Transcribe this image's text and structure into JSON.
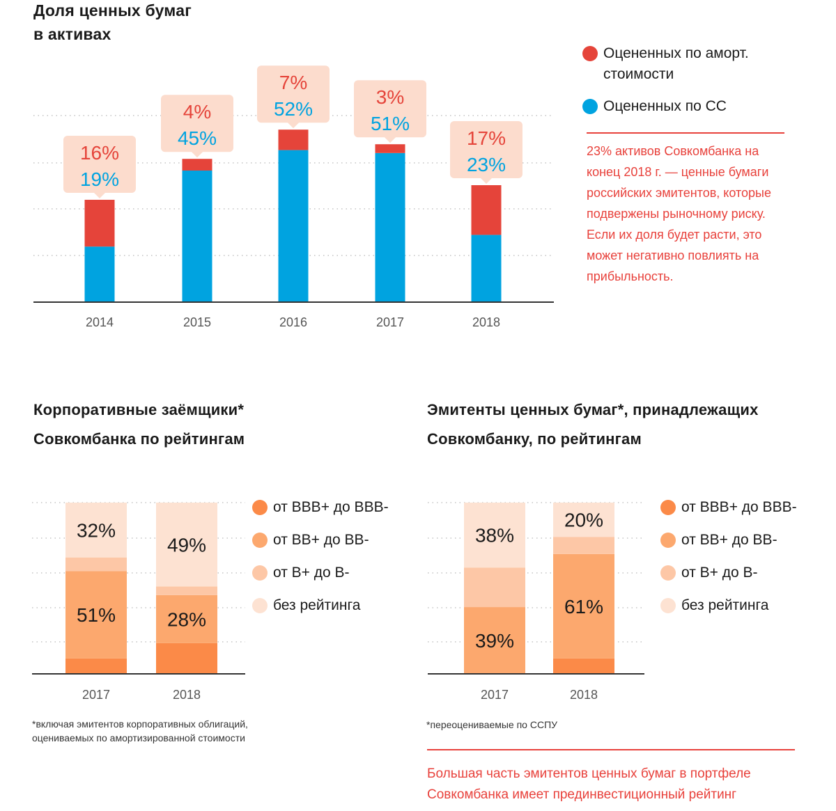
{
  "colors": {
    "amort": "#e5443a",
    "fair": "#00a3e0",
    "callout_bg": "#fcdccd",
    "bbb": "#fb8a48",
    "bb": "#fca86e",
    "b": "#fdc7a6",
    "none": "#fde2d2",
    "note_red": "#e8413b"
  },
  "chart1": {
    "title_line1": "Доля ценных бумаг",
    "title_line2": "в активах",
    "legend": [
      {
        "label": "Оцененных по аморт.\nстоимости",
        "color": "#e5443a"
      },
      {
        "label": "Оцененных по СС",
        "color": "#00a3e0"
      }
    ],
    "note": "23% активов Совкомбанка на конец 2018 г. — ценные бумаги российских эмитентов, которые подвержены рыночному риску. Если их доля будет расти, это может негативно повлиять на прибыльность."
  },
  "chart2": {
    "title_line1": "Корпоративные заёмщики*",
    "title_line2": "Совкомбанка по рейтингам",
    "legend": [
      {
        "label": "от BBB+ до BBB-",
        "color": "#fb8a48"
      },
      {
        "label": "от BB+ до BB-",
        "color": "#fca86e"
      },
      {
        "label": "от B+ до B-",
        "color": "#fdc7a6"
      },
      {
        "label": "без рейтинга",
        "color": "#fde2d2"
      }
    ],
    "footnote_line1": "*включая эмитентов корпоративных облигаций,",
    "footnote_line2": "оцениваемых по амортизированной стоимости"
  },
  "chart3": {
    "title_line1": "Эмитенты ценных бумаг*, принадлежащих",
    "title_line2": "Совкомбанку, по рейтингам",
    "legend": [
      {
        "label": "от BBB+ до BBB-",
        "color": "#fb8a48"
      },
      {
        "label": "от BB+ до BB-",
        "color": "#fca86e"
      },
      {
        "label": "от B+ до B-",
        "color": "#fdc7a6"
      },
      {
        "label": "без рейтинга",
        "color": "#fde2d2"
      }
    ],
    "footnote": "*переоцениваемые по ССПУ",
    "note": "Большая часть эмитентов ценных бумаг в портфеле Совкомбанка имеет прединвестиционный рейтинг"
  },
  "chart_data": [
    {
      "type": "bar",
      "stacked": true,
      "title": "Доля ценных бумаг в активах",
      "categories": [
        "2014",
        "2015",
        "2016",
        "2017",
        "2018"
      ],
      "series": [
        {
          "name": "Оцененных по СС",
          "values": [
            19,
            45,
            52,
            51,
            23
          ],
          "labels": [
            "19%",
            "45%",
            "52%",
            "51%",
            "23%"
          ]
        },
        {
          "name": "Оцененных по аморт. стоимости",
          "values": [
            16,
            4,
            7,
            3,
            17
          ],
          "labels": [
            "16%",
            "4%",
            "7%",
            "3%",
            "17%"
          ]
        }
      ],
      "grid": true,
      "legend_position": "right"
    },
    {
      "type": "bar",
      "stacked": true,
      "title": "Корпоративные заёмщики* Совкомбанка по рейтингам",
      "categories": [
        "2017",
        "2018"
      ],
      "series": [
        {
          "name": "от BBB+ до BBB-",
          "values": [
            9,
            18
          ],
          "labels": [
            "",
            ""
          ]
        },
        {
          "name": "от BB+ до BB-",
          "values": [
            51,
            28
          ],
          "labels": [
            "51%",
            "28%"
          ]
        },
        {
          "name": "от B+ до B-",
          "values": [
            8,
            5
          ],
          "labels": [
            "",
            ""
          ]
        },
        {
          "name": "без рейтинга",
          "values": [
            32,
            49
          ],
          "labels": [
            "32%",
            "49%"
          ]
        }
      ],
      "ylim": [
        0,
        100
      ],
      "grid": true,
      "legend_position": "right"
    },
    {
      "type": "bar",
      "stacked": true,
      "title": "Эмитенты ценных бумаг*, принадлежащих Совкомбанку, по рейтингам",
      "categories": [
        "2017",
        "2018"
      ],
      "series": [
        {
          "name": "от BBB+ до BBB-",
          "values": [
            0,
            9
          ],
          "labels": [
            "",
            ""
          ]
        },
        {
          "name": "от BB+ до BB-",
          "values": [
            39,
            61
          ],
          "labels": [
            "39%",
            "61%"
          ]
        },
        {
          "name": "от B+ до B-",
          "values": [
            23,
            10
          ],
          "labels": [
            "",
            ""
          ]
        },
        {
          "name": "без рейтинга",
          "values": [
            38,
            20
          ],
          "labels": [
            "38%",
            "20%"
          ]
        }
      ],
      "ylim": [
        0,
        100
      ],
      "grid": true,
      "legend_position": "right"
    }
  ]
}
